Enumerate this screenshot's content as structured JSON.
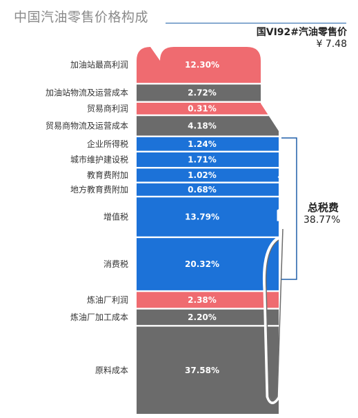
{
  "header": {
    "title": "中国汽油零售价格构成",
    "subtitle": "国VI92#汽油零售价",
    "price": "¥ 7.48"
  },
  "tax_bracket": {
    "label": "总税费",
    "value": "38.77%"
  },
  "colors": {
    "red": "#ef6b70",
    "gray": "#6b6b6b",
    "blue": "#1c72d8",
    "bracket": "#1f5fa8"
  },
  "chart_data": {
    "type": "bar",
    "title": "中国汽油零售价格构成",
    "stacked": true,
    "unit": "%",
    "categories": [
      "加油站最高利润",
      "加油站物流及运营成本",
      "贸易商利润",
      "贸易商物流及运营成本",
      "企业所得税",
      "城市维护建设税",
      "教育费附加",
      "地方教育费附加",
      "增值税",
      "消费税",
      "炼油厂利润",
      "炼油厂加工成本",
      "原料成本"
    ],
    "values": [
      12.3,
      2.72,
      0.31,
      4.18,
      1.24,
      1.71,
      1.02,
      0.68,
      13.79,
      20.32,
      2.38,
      2.2,
      37.58
    ],
    "value_labels": [
      "12.30%",
      "2.72%",
      "0.31%",
      "4.18%",
      "1.24%",
      "1.71%",
      "1.02%",
      "0.68%",
      "13.79%",
      "20.32%",
      "2.38%",
      "2.20%",
      "37.58%"
    ],
    "groups": [
      "profit",
      "cost",
      "profit",
      "cost",
      "tax",
      "tax",
      "tax",
      "tax",
      "tax",
      "tax",
      "profit",
      "cost",
      "cost"
    ]
  }
}
